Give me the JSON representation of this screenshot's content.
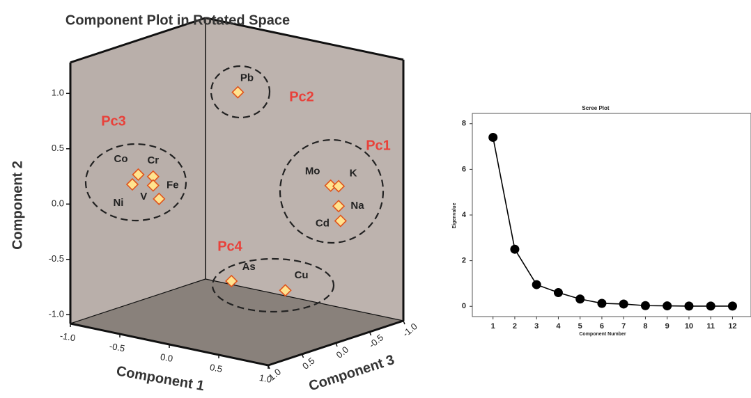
{
  "chart_data": [
    {
      "type": "scatter3d",
      "title": "Component Plot in Rotated Space",
      "xlabel": "Component 1",
      "ylabel": "Component 2",
      "zlabel": "Component 3",
      "labels": [
        "Pb",
        "Co",
        "Cr",
        "Ni",
        "V",
        "Fe",
        "Mo",
        "K",
        "Na",
        "Cd",
        "As",
        "Cu"
      ],
      "x": [
        0.01,
        -0.45,
        -0.3,
        -0.51,
        -0.24,
        -0.3,
        0.88,
        0.96,
        0.96,
        0.98,
        0.15,
        0.49
      ],
      "y": [
        1.0,
        0.33,
        0.34,
        0.23,
        0.15,
        0.26,
        0.3,
        0.31,
        0.13,
        0.0,
        -0.62,
        -0.7
      ],
      "z": [
        0,
        0.8,
        0.8,
        0.8,
        0.8,
        0.8,
        -0.1,
        -0.1,
        -0.1,
        -0.1,
        0.3,
        0
      ],
      "color": "#ffe38f",
      "edgecolor": "#e0541c",
      "annotations": [
        "Pc1",
        "Pc2",
        "Pc3",
        "Pc4"
      ],
      "annotation_color": "#e8413a",
      "xlim": [
        -1,
        1
      ],
      "ylim": [
        -1.08,
        1.28
      ],
      "zlim": [
        -1,
        1
      ],
      "xticks": [
        {
          "value": -1,
          "label": "-1.0"
        },
        {
          "value": -0.5,
          "label": "-0.5"
        },
        {
          "value": 0,
          "label": "0.0"
        },
        {
          "value": 0.5,
          "label": "0.5"
        },
        {
          "value": 1,
          "label": "1.0"
        }
      ],
      "yticks": [
        {
          "value": -1,
          "label": "-1.0"
        },
        {
          "value": -0.5,
          "label": "-0.5"
        },
        {
          "value": 0,
          "label": "0.0"
        },
        {
          "value": 0.5,
          "label": "0.5"
        },
        {
          "value": 1,
          "label": "1.0"
        }
      ],
      "zticks": [
        {
          "value": 1,
          "label": "1.0"
        },
        {
          "value": 0.5,
          "label": "0.5"
        },
        {
          "value": 0,
          "label": "0.0"
        },
        {
          "value": -0.5,
          "label": "-0.5"
        },
        {
          "value": -1,
          "label": "-1.0"
        }
      ]
    },
    {
      "type": "line",
      "title": "Scree Plot",
      "xlabel": "Component Number",
      "ylabel": "Eigenvalue",
      "x": [
        1,
        2,
        3,
        4,
        5,
        6,
        7,
        8,
        9,
        10,
        11,
        12
      ],
      "values": [
        7.4,
        2.5,
        0.95,
        0.6,
        0.32,
        0.13,
        0.1,
        0.03,
        0.02,
        0.01,
        0.01,
        0.01
      ],
      "color": "#000000",
      "xlim": [
        0.05,
        12.85
      ],
      "ylim": [
        -0.45,
        8.45
      ],
      "xticks": [
        1,
        2,
        3,
        4,
        5,
        6,
        7,
        8,
        9,
        10,
        11,
        12
      ],
      "yticks": [
        0,
        2,
        4,
        6,
        8
      ]
    }
  ]
}
